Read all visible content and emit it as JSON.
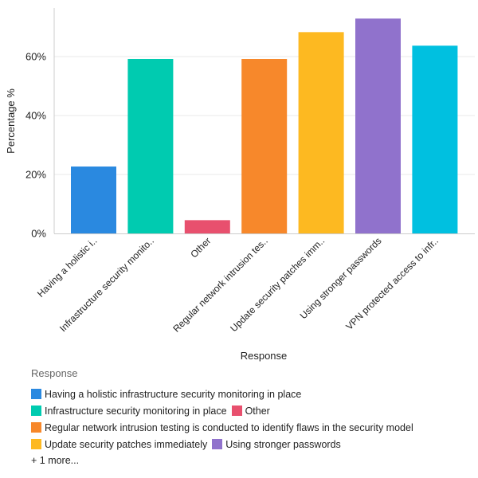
{
  "chart_data": {
    "type": "bar",
    "xlabel": "Response",
    "ylabel": "Percentage %",
    "ylim": [
      0,
      76.5
    ],
    "yticks": [
      0,
      20,
      40,
      60
    ],
    "ytick_labels": [
      "0%",
      "20%",
      "40%",
      "60%"
    ],
    "grid": true,
    "categories": [
      "Having a holistic infrastructure security monitoring in place",
      "Infrastructure security monitoring in place",
      "Other",
      "Regular network intrusion testing is conducted to identify flaws in the security model",
      "Update security patches immediately",
      "Using stronger passwords",
      "VPN protected access to infrastructure"
    ],
    "tick_labels": [
      "Having a holistic i..",
      "Infrastructure security monito..",
      "Other",
      "Regular network intrusion tes..",
      "Update security patches imm..",
      "Using stronger passwords",
      "VPN protected access to infr.."
    ],
    "values": [
      22.7,
      59.2,
      4.5,
      59.2,
      68.3,
      72.9,
      63.7
    ],
    "colors": [
      "#2a89e0",
      "#00cbb0",
      "#e8506e",
      "#f7882b",
      "#fdb921",
      "#9072cc",
      "#00c0e0"
    ],
    "legend": {
      "title": "Response",
      "placement": "bottom-left",
      "rows": [
        [
          0
        ],
        [
          1,
          2
        ],
        [
          3
        ],
        [
          4,
          5
        ]
      ],
      "more_label": "+ 1 more..."
    }
  }
}
